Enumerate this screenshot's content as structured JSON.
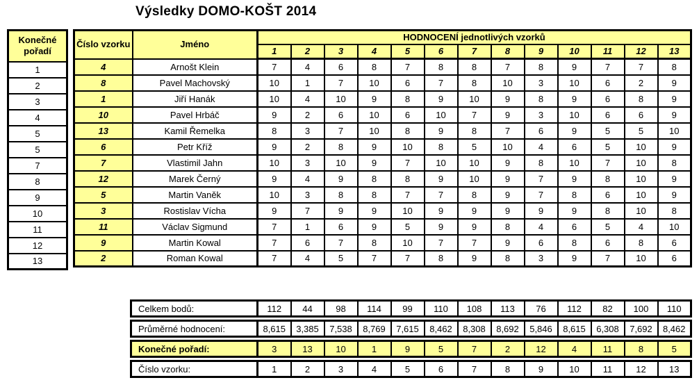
{
  "title": "Výsledky DOMO-KOŠT 2014",
  "table": {
    "headers": {
      "final_rank": "Konečné pořadí",
      "sample_number": "Číslo vzorku",
      "name": "Jméno",
      "scores_group": "HODNOCENÍ jednotlivých vzorků"
    },
    "score_columns": [
      "1",
      "2",
      "3",
      "4",
      "5",
      "6",
      "7",
      "8",
      "9",
      "10",
      "11",
      "12",
      "13"
    ],
    "rows": [
      {
        "final_rank": "1",
        "sample_number": "4",
        "name": "Arnošt Klein",
        "scores": [
          "7",
          "4",
          "6",
          "8",
          "7",
          "8",
          "8",
          "7",
          "8",
          "9",
          "7",
          "7",
          "8"
        ]
      },
      {
        "final_rank": "2",
        "sample_number": "8",
        "name": "Pavel Machovský",
        "scores": [
          "10",
          "1",
          "7",
          "10",
          "6",
          "7",
          "8",
          "10",
          "3",
          "10",
          "6",
          "2",
          "9"
        ]
      },
      {
        "final_rank": "3",
        "sample_number": "1",
        "name": "Jiří Hanák",
        "scores": [
          "10",
          "4",
          "10",
          "9",
          "8",
          "9",
          "10",
          "9",
          "8",
          "9",
          "6",
          "8",
          "9"
        ]
      },
      {
        "final_rank": "4",
        "sample_number": "10",
        "name": "Pavel Hrbáč",
        "scores": [
          "9",
          "2",
          "6",
          "10",
          "6",
          "10",
          "7",
          "9",
          "3",
          "10",
          "6",
          "6",
          "9"
        ]
      },
      {
        "final_rank": "5",
        "sample_number": "13",
        "name": "Kamil Řemelka",
        "scores": [
          "8",
          "3",
          "7",
          "10",
          "8",
          "9",
          "8",
          "7",
          "6",
          "9",
          "5",
          "5",
          "10"
        ]
      },
      {
        "final_rank": "5",
        "sample_number": "6",
        "name": "Petr Kříž",
        "scores": [
          "9",
          "2",
          "8",
          "9",
          "10",
          "8",
          "5",
          "10",
          "4",
          "6",
          "5",
          "10",
          "9"
        ]
      },
      {
        "final_rank": "7",
        "sample_number": "7",
        "name": "Vlastimil Jahn",
        "scores": [
          "10",
          "3",
          "10",
          "9",
          "7",
          "10",
          "10",
          "9",
          "8",
          "10",
          "7",
          "10",
          "8"
        ]
      },
      {
        "final_rank": "8",
        "sample_number": "12",
        "name": "Marek Černý",
        "scores": [
          "9",
          "4",
          "9",
          "8",
          "8",
          "9",
          "10",
          "9",
          "7",
          "9",
          "8",
          "10",
          "9"
        ]
      },
      {
        "final_rank": "9",
        "sample_number": "5",
        "name": "Martin Vaněk",
        "scores": [
          "10",
          "3",
          "8",
          "8",
          "7",
          "7",
          "8",
          "9",
          "7",
          "8",
          "6",
          "10",
          "9"
        ]
      },
      {
        "final_rank": "10",
        "sample_number": "3",
        "name": "Rostislav Vícha",
        "scores": [
          "9",
          "7",
          "9",
          "9",
          "10",
          "9",
          "9",
          "9",
          "9",
          "9",
          "8",
          "10",
          "8"
        ]
      },
      {
        "final_rank": "11",
        "sample_number": "11",
        "name": "Václav Sigmund",
        "scores": [
          "7",
          "1",
          "6",
          "9",
          "5",
          "9",
          "9",
          "8",
          "4",
          "6",
          "5",
          "4",
          "10"
        ]
      },
      {
        "final_rank": "12",
        "sample_number": "9",
        "name": "Martin Kowal",
        "scores": [
          "7",
          "6",
          "7",
          "8",
          "10",
          "7",
          "7",
          "9",
          "6",
          "8",
          "6",
          "8",
          "6"
        ]
      },
      {
        "final_rank": "13",
        "sample_number": "2",
        "name": "Roman Kowal",
        "scores": [
          "7",
          "4",
          "5",
          "7",
          "7",
          "8",
          "9",
          "8",
          "3",
          "9",
          "7",
          "10",
          "6"
        ]
      }
    ]
  },
  "footer": {
    "rows": [
      {
        "label": "Celkem bodů:",
        "values": [
          "112",
          "44",
          "98",
          "114",
          "99",
          "110",
          "108",
          "113",
          "76",
          "112",
          "82",
          "100",
          "110"
        ],
        "highlight": false
      },
      {
        "label": "Průměrné hodnocení:",
        "values": [
          "8,615",
          "3,385",
          "7,538",
          "8,769",
          "7,615",
          "8,462",
          "8,308",
          "8,692",
          "5,846",
          "8,615",
          "6,308",
          "7,692",
          "8,462"
        ],
        "highlight": false
      },
      {
        "label": "Konečné pořadí:",
        "values": [
          "3",
          "13",
          "10",
          "1",
          "9",
          "5",
          "7",
          "2",
          "12",
          "4",
          "11",
          "8",
          "5"
        ],
        "highlight": true
      },
      {
        "label": "Číslo vzorku:",
        "values": [
          "1",
          "2",
          "3",
          "4",
          "5",
          "6",
          "7",
          "8",
          "9",
          "10",
          "11",
          "12",
          "13"
        ],
        "highlight": false
      }
    ]
  },
  "colors": {
    "highlight_yellow": "#FFFF99",
    "border_black": "#000000"
  }
}
